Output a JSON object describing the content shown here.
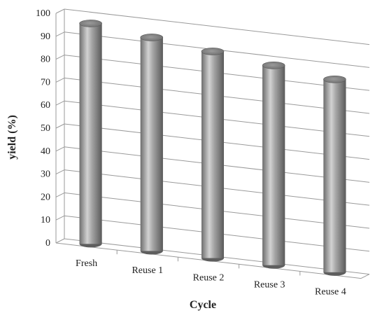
{
  "chart_data": {
    "type": "bar",
    "bar_style": "3d-cylinder",
    "title": "",
    "xlabel": "Cycle",
    "ylabel": "yield (%)",
    "categories": [
      "Fresh",
      "Reuse 1",
      "Reuse 2",
      "Reuse 3",
      "Reuse 4"
    ],
    "values": [
      96,
      93,
      90,
      87,
      84
    ],
    "ylim": [
      0,
      100
    ],
    "yticks": [
      "0",
      "10",
      "20",
      "30",
      "40",
      "50",
      "60",
      "70",
      "80",
      "90",
      "100"
    ],
    "grid": true,
    "legend": "none",
    "colors": {
      "bar": "#8c8c8c",
      "bar_highlight": "#d9d9d9",
      "bar_shadow": "#5a5a5a",
      "grid": "#9a9a9a",
      "text": "#222222"
    }
  }
}
